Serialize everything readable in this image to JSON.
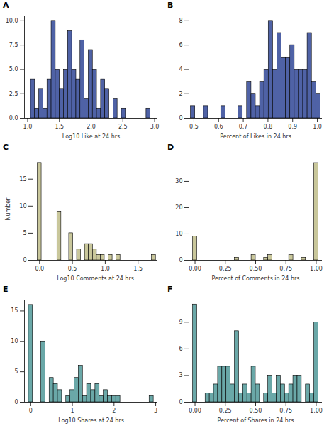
{
  "chart_data": [
    {
      "type": "histogram",
      "title": "A",
      "xlabel": "Log10 Like at 24 hrs",
      "color": "#4f62a6",
      "bins": [
        1.05,
        1.115,
        1.18,
        1.245,
        1.31,
        1.375,
        1.44,
        1.505,
        1.57,
        1.635,
        1.7,
        1.765,
        1.83,
        1.895,
        1.96,
        2.025,
        2.09,
        2.155,
        2.22,
        2.285,
        2.35,
        2.415,
        2.48,
        2.545,
        2.61,
        2.675,
        2.74,
        2.805,
        2.87,
        2.935,
        3.0
      ],
      "counts": [
        4,
        1,
        3,
        1,
        4,
        10,
        5,
        3,
        5,
        9,
        5,
        4,
        8,
        2,
        7,
        5,
        1,
        4,
        3,
        0,
        2,
        0,
        1,
        0,
        0,
        0,
        0,
        0,
        1,
        0
      ],
      "xlim": [
        0.95,
        3.05
      ],
      "xticks": [
        {
          "value": 1.0,
          "label": "1.0"
        },
        1.5,
        {
          "value": 2.0,
          "label": "2.0"
        },
        2.5,
        {
          "value": 3.0,
          "label": "3.0"
        }
      ],
      "ylim": [
        0,
        10.5
      ],
      "yticks": [
        {
          "value": 0,
          "label": "0.0"
        },
        2.5,
        {
          "value": 5,
          "label": "5.0"
        },
        7.5,
        {
          "value": 10,
          "label": "10.0"
        }
      ]
    },
    {
      "type": "histogram",
      "title": "B",
      "xlabel": "Percent of Likes in 24 hrs",
      "color": "#4f62a6",
      "bins": [
        0.4875,
        0.505,
        0.5225,
        0.54,
        0.5575,
        0.575,
        0.5925,
        0.61,
        0.6275,
        0.645,
        0.6625,
        0.68,
        0.6975,
        0.715,
        0.7325,
        0.75,
        0.7675,
        0.785,
        0.8025,
        0.82,
        0.8375,
        0.855,
        0.8725,
        0.89,
        0.9075,
        0.925,
        0.9425,
        0.96,
        0.9775,
        0.995,
        1.0125
      ],
      "counts": [
        1,
        0,
        0,
        1,
        0,
        0,
        0,
        1,
        0,
        0,
        0,
        1,
        0,
        3,
        2,
        1,
        3,
        4,
        8,
        4,
        7,
        5,
        5,
        6,
        4,
        4,
        4,
        7,
        3,
        2
      ],
      "xlim": [
        0.48,
        1.02
      ],
      "xticks": [
        0.5,
        0.6,
        0.7,
        0.8,
        0.9,
        {
          "value": 1.0,
          "label": "1.0"
        }
      ],
      "ylim": [
        0,
        8.4
      ],
      "yticks": [
        0,
        2,
        4,
        6,
        8
      ]
    },
    {
      "type": "histogram",
      "title": "C",
      "xlabel": "Log10 Comments at 24 hrs",
      "ylabel": "Number",
      "color": "#c9c79b",
      "bins": [
        -0.03,
        0.03,
        0.09,
        0.15,
        0.21,
        0.27,
        0.33,
        0.39,
        0.45,
        0.51,
        0.57,
        0.63,
        0.69,
        0.75,
        0.81,
        0.87,
        0.93,
        0.99,
        1.05,
        1.11,
        1.17,
        1.23,
        1.29,
        1.35,
        1.41,
        1.47,
        1.53,
        1.59,
        1.65,
        1.71,
        1.77
      ],
      "counts": [
        18,
        0,
        0,
        0,
        0,
        9,
        0,
        0,
        5,
        0,
        2,
        0,
        3,
        3,
        2,
        1,
        1,
        0,
        1,
        0,
        1,
        0,
        0,
        0,
        0,
        0,
        0,
        0,
        0,
        1
      ],
      "xlim": [
        -0.1,
        1.8
      ],
      "xticks": [
        {
          "value": 0,
          "label": "0.0"
        },
        0.5,
        {
          "value": 1.0,
          "label": "1.0"
        },
        1.5
      ],
      "ylim": [
        0,
        18.9
      ],
      "yticks": [
        0,
        5,
        10,
        15
      ]
    },
    {
      "type": "histogram",
      "title": "D",
      "xlabel": "Percent of Comments in 24 hrs",
      "color": "#c9c79b",
      "bins": [
        -0.0175,
        0.017,
        0.0515,
        0.086,
        0.1205,
        0.155,
        0.1895,
        0.224,
        0.2585,
        0.293,
        0.3275,
        0.362,
        0.3965,
        0.431,
        0.4655,
        0.5,
        0.5345,
        0.569,
        0.6035,
        0.638,
        0.6725,
        0.707,
        0.7415,
        0.776,
        0.8105,
        0.845,
        0.8795,
        0.914,
        0.9485,
        0.983,
        1.0175
      ],
      "counts": [
        9,
        0,
        0,
        0,
        0,
        0,
        0,
        0,
        0,
        0,
        1,
        0,
        0,
        0,
        2,
        0,
        0,
        1,
        2,
        0,
        0,
        0,
        0,
        2,
        0,
        0,
        1,
        0,
        0,
        37
      ],
      "xlim": [
        -0.05,
        1.05
      ],
      "xticks": [
        {
          "value": 0,
          "label": "0.00"
        },
        0.25,
        {
          "value": 0.5,
          "label": "0.50"
        },
        0.75,
        {
          "value": 1.0,
          "label": "1.00"
        }
      ],
      "ylim": [
        0,
        38.9
      ],
      "yticks": [
        0,
        10,
        20,
        30
      ]
    },
    {
      "type": "histogram",
      "title": "E",
      "xlabel": "Log10 Shares at 24 hrs",
      "color": "#6aa8a8",
      "bins": [
        -0.05,
        0.05,
        0.15,
        0.25,
        0.35,
        0.45,
        0.55,
        0.65,
        0.75,
        0.85,
        0.95,
        1.05,
        1.15,
        1.25,
        1.35,
        1.45,
        1.55,
        1.65,
        1.75,
        1.85,
        1.95,
        2.05,
        2.15,
        2.25,
        2.35,
        2.45,
        2.55,
        2.65,
        2.75,
        2.85,
        2.95
      ],
      "counts": [
        16,
        0,
        0,
        10,
        0,
        4,
        3,
        2,
        0,
        1,
        2,
        4,
        6,
        1,
        3,
        2,
        3,
        1,
        2,
        1,
        1,
        1,
        0,
        0,
        0,
        0,
        0,
        0,
        0,
        1
      ],
      "xlim": [
        -0.15,
        3.05
      ],
      "xticks": [
        0,
        1,
        2,
        3
      ],
      "ylim": [
        0,
        16.8
      ],
      "yticks": [
        0,
        5,
        10,
        15
      ]
    },
    {
      "type": "histogram",
      "title": "F",
      "xlabel": "Percent of Shares in 24 hrs",
      "color": "#6aa8a8",
      "bins": [
        -0.0175,
        0.017,
        0.0515,
        0.086,
        0.1205,
        0.155,
        0.1895,
        0.224,
        0.2585,
        0.293,
        0.3275,
        0.362,
        0.3965,
        0.431,
        0.4655,
        0.5,
        0.5345,
        0.569,
        0.6035,
        0.638,
        0.6725,
        0.707,
        0.7415,
        0.776,
        0.8105,
        0.845,
        0.8795,
        0.914,
        0.9485,
        0.983,
        1.0175
      ],
      "counts": [
        11,
        0,
        0,
        1,
        1,
        2,
        4,
        4,
        4,
        2,
        8,
        1,
        2,
        1,
        4,
        2,
        0,
        1,
        3,
        1,
        3,
        2,
        1,
        2,
        3,
        3,
        0,
        2,
        1,
        9
      ],
      "xlim": [
        -0.05,
        1.05
      ],
      "xticks": [
        {
          "value": 0,
          "label": "0.00"
        },
        0.25,
        {
          "value": 0.5,
          "label": "0.50"
        },
        0.75,
        {
          "value": 1.0,
          "label": "1.00"
        }
      ],
      "ylim": [
        0,
        11.5
      ],
      "yticks": [
        0,
        3,
        6,
        9
      ]
    }
  ]
}
